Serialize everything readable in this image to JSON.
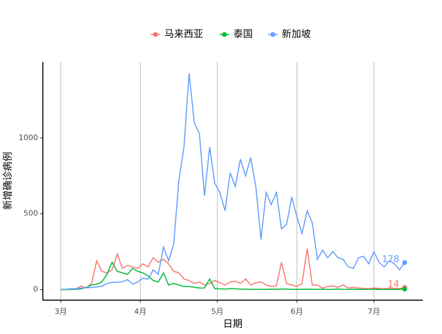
{
  "chart_data": {
    "type": "line",
    "xlabel": "日期",
    "ylabel": "新增确诊病例",
    "x": [
      0,
      2,
      4,
      6,
      8,
      10,
      12,
      14,
      16,
      18,
      20,
      22,
      24,
      26,
      28,
      30,
      32,
      34,
      36,
      38,
      40,
      42,
      44,
      46,
      48,
      50,
      52,
      54,
      56,
      58,
      60,
      62,
      64,
      66,
      68,
      70,
      72,
      74,
      76,
      78,
      80,
      82,
      84,
      86,
      88,
      90,
      92,
      94,
      96,
      98,
      100,
      102,
      104,
      106,
      108,
      110,
      112,
      114,
      116,
      118,
      120,
      122,
      124,
      126,
      128,
      130,
      132,
      134
    ],
    "series": [
      {
        "name": "马来西亚",
        "color": "#F8766D",
        "end_label": "14",
        "values": [
          0,
          0,
          2,
          5,
          24,
          10,
          41,
          190,
          120,
          110,
          130,
          235,
          140,
          160,
          150,
          140,
          170,
          150,
          210,
          180,
          200,
          170,
          120,
          110,
          70,
          60,
          40,
          50,
          30,
          40,
          60,
          45,
          30,
          50,
          55,
          40,
          70,
          30,
          45,
          50,
          30,
          20,
          25,
          180,
          40,
          30,
          20,
          40,
          270,
          30,
          30,
          10,
          20,
          25,
          15,
          30,
          10,
          15,
          10,
          8,
          5,
          10,
          8,
          5,
          10,
          8,
          6,
          14
        ]
      },
      {
        "name": "泰国",
        "color": "#00BA38",
        "values": [
          0,
          0,
          1,
          2,
          5,
          15,
          30,
          35,
          50,
          100,
          180,
          120,
          110,
          100,
          140,
          120,
          110,
          90,
          60,
          50,
          110,
          30,
          40,
          30,
          20,
          20,
          15,
          10,
          10,
          70,
          5,
          5,
          3,
          6,
          5,
          3,
          3,
          2,
          2,
          1,
          2,
          3,
          2,
          4,
          3,
          2,
          1,
          2,
          3,
          1,
          2,
          3,
          1,
          2,
          4,
          2,
          1,
          3,
          2,
          1,
          2,
          3,
          1,
          2,
          2,
          1,
          2,
          3
        ]
      },
      {
        "name": "新加坡",
        "color": "#619CFF",
        "end_label": "178",
        "values": [
          2,
          2,
          5,
          5,
          10,
          12,
          14,
          17,
          23,
          40,
          47,
          49,
          52,
          65,
          35,
          50,
          75,
          69,
          130,
          100,
          280,
          190,
          300,
          720,
          940,
          1426,
          1100,
          1030,
          620,
          940,
          700,
          640,
          520,
          770,
          680,
          860,
          750,
          870,
          680,
          330,
          640,
          560,
          640,
          400,
          430,
          610,
          480,
          370,
          520,
          440,
          200,
          260,
          210,
          250,
          210,
          200,
          150,
          140,
          210,
          220,
          170,
          250,
          180,
          150,
          190,
          170,
          130,
          178
        ]
      }
    ],
    "xlim": [
      -7,
      141
    ],
    "xticks": [
      {
        "value": 0,
        "label": "3月"
      },
      {
        "value": 31,
        "label": "4月"
      },
      {
        "value": 61,
        "label": "5月"
      },
      {
        "value": 92,
        "label": "6月"
      },
      {
        "value": 122,
        "label": "7月"
      }
    ],
    "ylim": [
      -70,
      1500
    ],
    "yticks": [
      0,
      500,
      1000
    ],
    "grid": "x"
  }
}
